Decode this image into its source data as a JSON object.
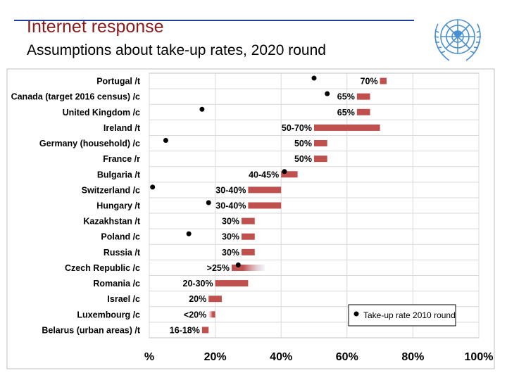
{
  "header": {
    "title": "Internet response",
    "subtitle": "Assumptions about take-up rates, 2020 round",
    "logo_icon": "un-emblem-icon",
    "colors": {
      "title": "#8b1a1a",
      "rule": "#1f3f9a",
      "logo": "#4a8fd0"
    }
  },
  "chart_data": {
    "type": "bar",
    "orientation": "horizontal",
    "categories": [
      "Portugal /t",
      "Canada (target 2016 census) /c",
      "United Kingdom /c",
      "Ireland /t",
      "Germany (household) /c",
      "France /r",
      "Bulgaria /t",
      "Switzerland /c",
      "Hungary /t",
      "Kazakhstan /t",
      "Poland /c",
      "Russia /t",
      "Czech Republic /c",
      "Romania /c",
      "Israel /c",
      "Luxembourg /c",
      "Belarus (urban areas) /t"
    ],
    "series": [
      {
        "name": "",
        "role": "assumed range",
        "color": "#c0504d",
        "ranges": [
          [
            0.7,
            0.72
          ],
          [
            0.63,
            0.67
          ],
          [
            0.63,
            0.67
          ],
          [
            0.5,
            0.7
          ],
          [
            0.5,
            0.54
          ],
          [
            0.5,
            0.54
          ],
          [
            0.4,
            0.45
          ],
          [
            0.3,
            0.4
          ],
          [
            0.3,
            0.4
          ],
          [
            0.28,
            0.32
          ],
          [
            0.28,
            0.32
          ],
          [
            0.28,
            0.32
          ],
          [
            0.25,
            0.35
          ],
          [
            0.2,
            0.3
          ],
          [
            0.18,
            0.22
          ],
          [
            0.18,
            0.2
          ],
          [
            0.16,
            0.18
          ]
        ],
        "fading": [
          false,
          false,
          false,
          false,
          false,
          false,
          false,
          false,
          false,
          false,
          false,
          false,
          true,
          false,
          false,
          true,
          false
        ],
        "labels": [
          "70%",
          "65%",
          "65%",
          "50-70%",
          "50%",
          "50%",
          "40-45%",
          "30-40%",
          "30-40%",
          "30%",
          "30%",
          "30%",
          ">25%",
          "20-30%",
          "20%",
          "<20%",
          "16-18%"
        ]
      },
      {
        "name": "Take-up rate 2010 round",
        "role": "marker",
        "color": "#000000",
        "values": [
          0.5,
          0.54,
          0.16,
          null,
          0.05,
          null,
          0.41,
          0.01,
          0.18,
          null,
          0.12,
          null,
          0.27,
          null,
          null,
          null,
          null
        ]
      }
    ],
    "xlim": [
      0,
      1
    ],
    "xticks": [
      0,
      0.2,
      0.4,
      0.6,
      0.8,
      1.0
    ],
    "xtick_labels": [
      "%",
      "20%",
      "40%",
      "60%",
      "80%",
      "100%"
    ],
    "grid": true,
    "legend_position": "bottom-right",
    "title": "",
    "xlabel": "",
    "ylabel": ""
  }
}
